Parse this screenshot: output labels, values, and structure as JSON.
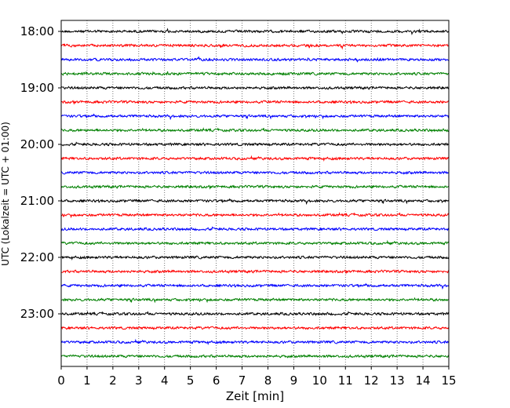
{
  "chart_data": {
    "type": "line",
    "title": "",
    "xlabel": "Zeit  [min]",
    "ylabel": "UTC (Lokalzeit = UTC + 01:00)",
    "xlim": [
      0,
      15
    ],
    "x_ticks": [
      0,
      1,
      2,
      3,
      4,
      5,
      6,
      7,
      8,
      9,
      10,
      11,
      12,
      13,
      14,
      15
    ],
    "y_tick_labels": [
      "18:00",
      "19:00",
      "20:00",
      "21:00",
      "22:00",
      "23:00"
    ],
    "grid": "vertical dotted lines at each minute",
    "trace_start": "18:00",
    "trace_interval_min": 15,
    "trace_count": 24,
    "trace_colors": [
      "#000000",
      "#ff0000",
      "#0000ff",
      "#008000"
    ],
    "amplitude": "low, noise-like seismic traces"
  }
}
